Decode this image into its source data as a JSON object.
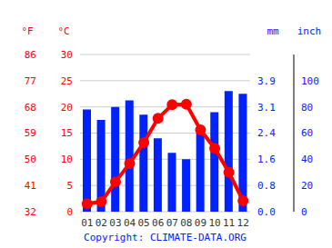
{
  "chart_data": {
    "type": "bar",
    "categories": [
      "01",
      "02",
      "03",
      "04",
      "05",
      "06",
      "07",
      "08",
      "09",
      "10",
      "11",
      "12"
    ],
    "series": [
      {
        "type": "line",
        "color": "#ff0000",
        "marker": "circle",
        "values": [
          1.5,
          1.9,
          5.7,
          9.2,
          13.2,
          17.8,
          20.4,
          20.5,
          15.6,
          12.1,
          7.5,
          2.1
        ]
      },
      {
        "type": "bar",
        "axis": "y2",
        "color": "#0022ff",
        "values": [
          78,
          70,
          80,
          85,
          74,
          56,
          45,
          40,
          60,
          76,
          92,
          90
        ]
      }
    ],
    "y_label": "°C",
    "ylim": [
      0,
      30
    ],
    "yticks": [
      0,
      5,
      10,
      15,
      20,
      25,
      30
    ],
    "y2_label": "mm",
    "y2lim": [
      0,
      120
    ],
    "y2ticks": [
      0,
      20,
      40,
      60,
      80,
      100
    ],
    "y3_label": "°F",
    "y3lim": [
      32,
      86
    ],
    "y3ticks": [
      32,
      41,
      50,
      59,
      68,
      77,
      86
    ],
    "y4_label": "inch",
    "y4lim": [
      0,
      4.724
    ],
    "y4ticks": [
      {
        "value": 0,
        "label": "0.0"
      },
      {
        "value": 0.787,
        "label": "0.8"
      },
      {
        "value": 1.575,
        "label": "1.6"
      },
      {
        "value": 2.362,
        "label": "2.4"
      },
      {
        "value": 3.1496,
        "label": "3.1"
      },
      {
        "value": 3.937,
        "label": "3.9"
      }
    ],
    "grid": true,
    "credit": "Copyright: CLIMATE-DATA.ORG"
  }
}
